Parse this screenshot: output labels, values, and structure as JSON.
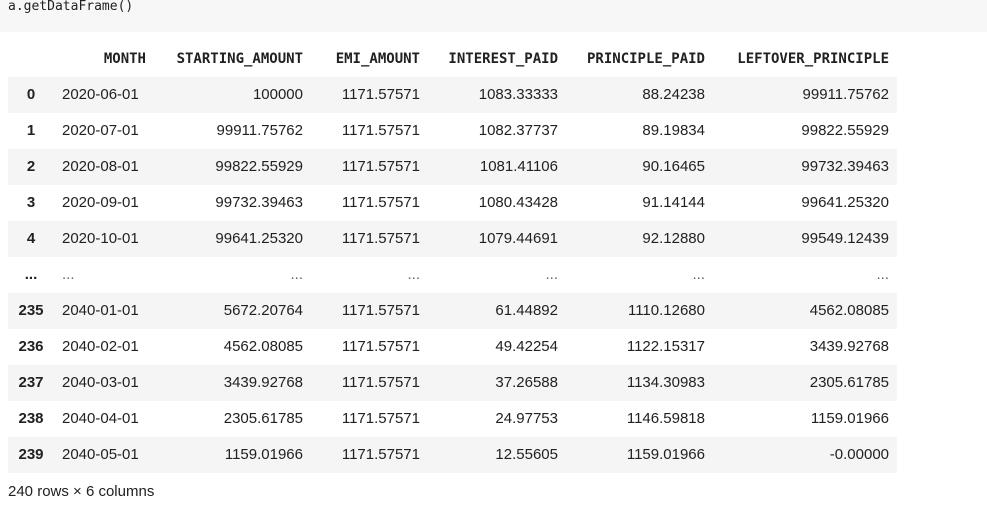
{
  "code": {
    "line": "a.getDataFrame()"
  },
  "table": {
    "columns": [
      "MONTH",
      "STARTING_AMOUNT",
      "EMI_AMOUNT",
      "INTEREST_PAID",
      "PRINCIPLE_PAID",
      "LEFTOVER_PRINCIPLE"
    ],
    "rows": [
      {
        "index": "0",
        "cells": [
          "2020-06-01",
          "100000",
          "1171.57571",
          "1083.33333",
          "88.24238",
          "99911.75762"
        ]
      },
      {
        "index": "1",
        "cells": [
          "2020-07-01",
          "99911.75762",
          "1171.57571",
          "1082.37737",
          "89.19834",
          "99822.55929"
        ]
      },
      {
        "index": "2",
        "cells": [
          "2020-08-01",
          "99822.55929",
          "1171.57571",
          "1081.41106",
          "90.16465",
          "99732.39463"
        ]
      },
      {
        "index": "3",
        "cells": [
          "2020-09-01",
          "99732.39463",
          "1171.57571",
          "1080.43428",
          "91.14144",
          "99641.25320"
        ]
      },
      {
        "index": "4",
        "cells": [
          "2020-10-01",
          "99641.25320",
          "1171.57571",
          "1079.44691",
          "92.12880",
          "99549.12439"
        ]
      },
      {
        "index": "...",
        "cells": [
          "...",
          "...",
          "...",
          "...",
          "...",
          "..."
        ]
      },
      {
        "index": "235",
        "cells": [
          "2040-01-01",
          "5672.20764",
          "1171.57571",
          "61.44892",
          "1110.12680",
          "4562.08085"
        ]
      },
      {
        "index": "236",
        "cells": [
          "2040-02-01",
          "4562.08085",
          "1171.57571",
          "49.42254",
          "1122.15317",
          "3439.92768"
        ]
      },
      {
        "index": "237",
        "cells": [
          "2040-03-01",
          "3439.92768",
          "1171.57571",
          "37.26588",
          "1134.30983",
          "2305.61785"
        ]
      },
      {
        "index": "238",
        "cells": [
          "2040-04-01",
          "2305.61785",
          "1171.57571",
          "24.97753",
          "1146.59818",
          "1159.01966"
        ]
      },
      {
        "index": "239",
        "cells": [
          "2040-05-01",
          "1159.01966",
          "1171.57571",
          "12.55605",
          "1159.01966",
          "-0.00000"
        ]
      }
    ]
  },
  "footer": {
    "summary": "240 rows × 6 columns"
  }
}
